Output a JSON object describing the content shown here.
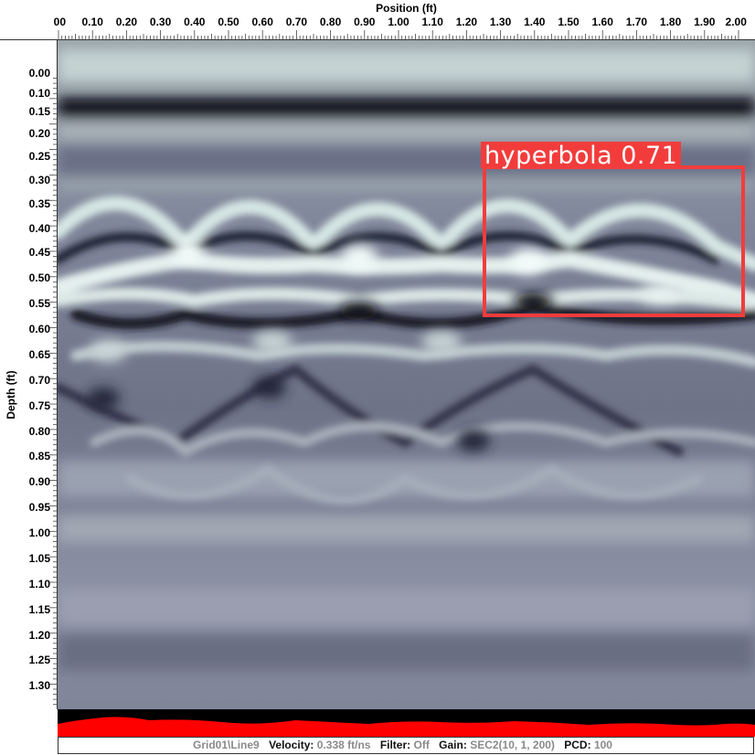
{
  "x_axis": {
    "title": "Position (ft)",
    "ticks": [
      "00",
      "0.10",
      "0.20",
      "0.30",
      "0.40",
      "0.50",
      "0.60",
      "0.70",
      "0.80",
      "0.90",
      "1.00",
      "1.10",
      "1.20",
      "1.30",
      "1.40",
      "1.50",
      "1.60",
      "1.70",
      "1.80",
      "1.90",
      "2.00"
    ]
  },
  "y_axis": {
    "title": "Depth (ft)",
    "ticks": [
      "0.00",
      "0.10",
      "0.15",
      "0.20",
      "0.25",
      "0.30",
      "0.35",
      "0.40",
      "0.45",
      "0.50",
      "0.55",
      "0.60",
      "0.65",
      "0.70",
      "0.75",
      "0.80",
      "0.85",
      "0.90",
      "0.95",
      "1.00",
      "1.05",
      "1.10",
      "1.15",
      "1.20",
      "1.25",
      "1.30"
    ]
  },
  "detection": {
    "label": "hyperbola 0.71",
    "color": "#f23c3c"
  },
  "status": {
    "line": "Grid01\\Line9",
    "velocity_key": "Velocity:",
    "velocity_val": "0.338 ft/ns",
    "filter_key": "Filter:",
    "filter_val": "Off",
    "gain_key": "Gain:",
    "gain_val": "SEC2(10, 1, 200)",
    "pcd_key": "PCD:",
    "pcd_val": "100"
  },
  "colors": {
    "signal": "#ff0000",
    "strip_background": "#000000",
    "radargram_base": "#8c91a1"
  }
}
